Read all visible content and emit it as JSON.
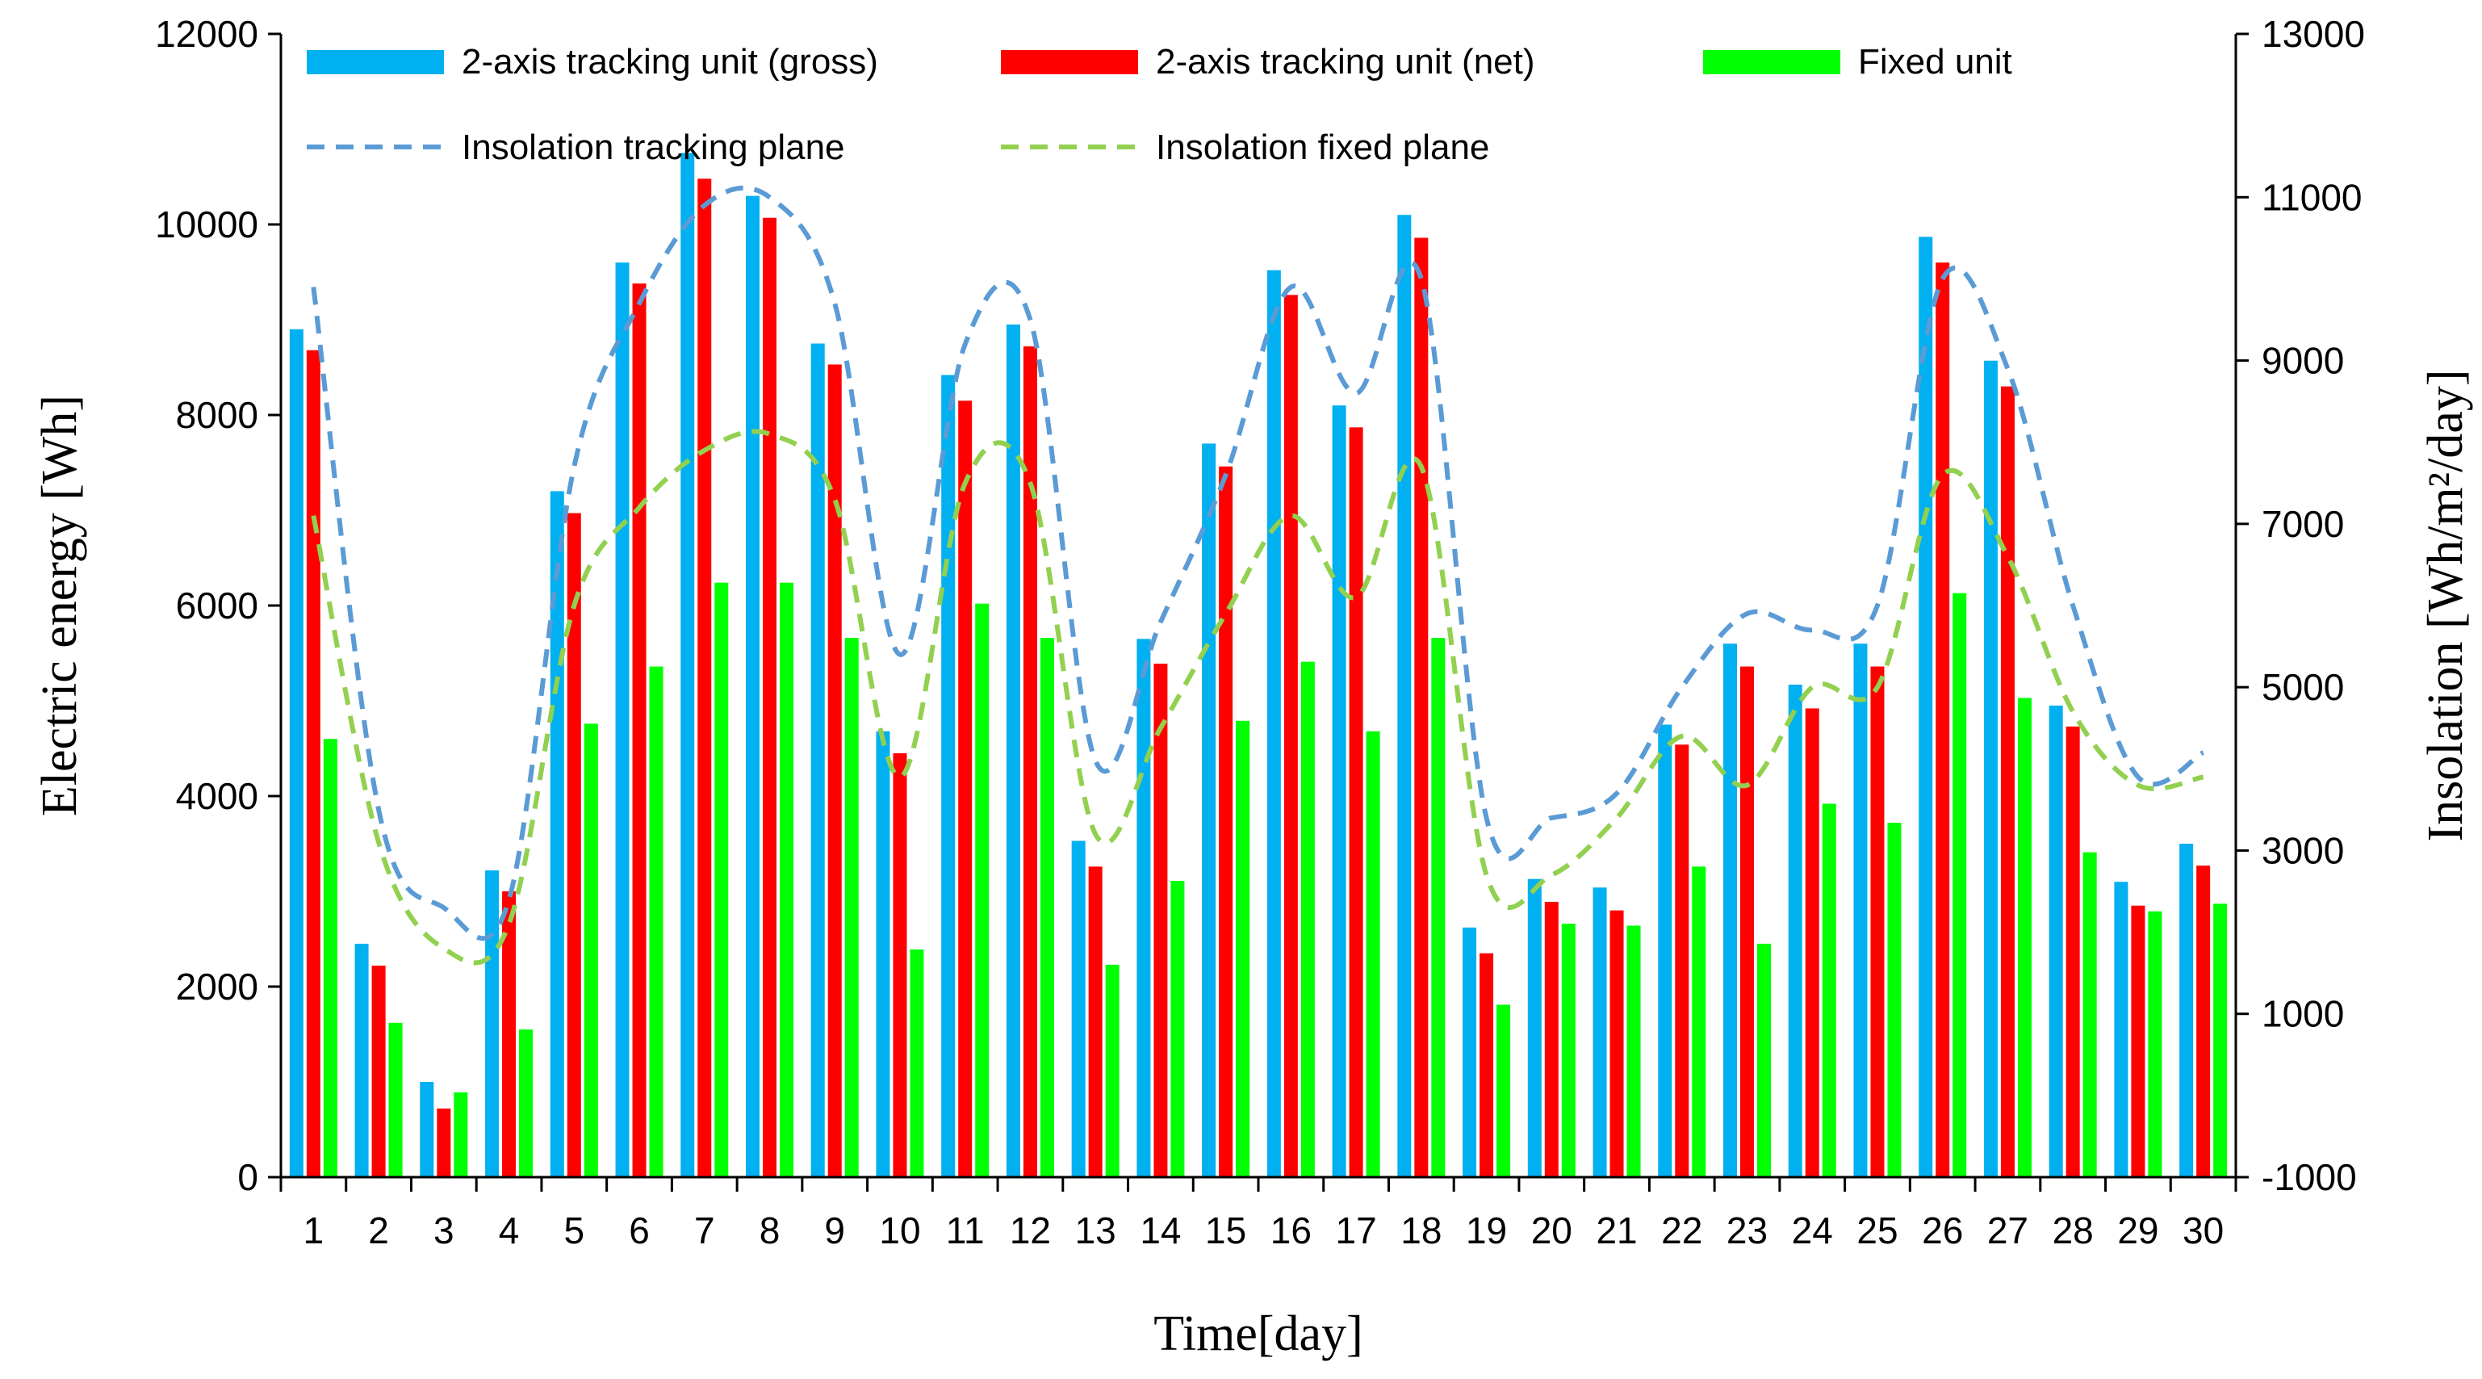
{
  "chart_data": {
    "type": "bar",
    "xlabel": "Time[day]",
    "ylabel": "Electric energy [Wh]",
    "y2label": "Insolation [Wh/m²/day]",
    "ylim": [
      0,
      12000
    ],
    "y2lim": [
      -1000,
      13000
    ],
    "yticks": [
      "0",
      "2000",
      "4000",
      "6000",
      "8000",
      "10000",
      "12000"
    ],
    "y2ticks": [
      "-1000",
      "1000",
      "3000",
      "5000",
      "7000",
      "9000",
      "11000",
      "13000"
    ],
    "categories": [
      "1",
      "2",
      "3",
      "4",
      "5",
      "6",
      "7",
      "8",
      "9",
      "10",
      "11",
      "12",
      "13",
      "14",
      "15",
      "16",
      "17",
      "18",
      "19",
      "20",
      "21",
      "22",
      "23",
      "24",
      "25",
      "26",
      "27",
      "28",
      "29",
      "30"
    ],
    "legend_position": "top",
    "series": [
      {
        "name": "2-axis tracking unit (gross)",
        "kind": "bar",
        "axis": "left",
        "color": "#00B0F0",
        "values": [
          8900,
          2450,
          1000,
          3220,
          7200,
          9600,
          10750,
          10300,
          8750,
          4680,
          8420,
          8950,
          3530,
          5650,
          7700,
          9520,
          8100,
          10100,
          2620,
          3130,
          3040,
          4750,
          5600,
          5170,
          5600,
          9870,
          8570,
          4950,
          3100,
          3500
        ]
      },
      {
        "name": "2-axis tracking unit (net)",
        "kind": "bar",
        "axis": "left",
        "color": "#FF0000",
        "values": [
          8680,
          2220,
          720,
          3000,
          6970,
          9380,
          10480,
          10070,
          8530,
          4450,
          8150,
          8720,
          3260,
          5390,
          7460,
          9260,
          7870,
          9860,
          2350,
          2890,
          2800,
          4540,
          5360,
          4920,
          5360,
          9600,
          8300,
          4730,
          2850,
          3270
        ]
      },
      {
        "name": "Fixed unit",
        "kind": "bar",
        "axis": "left",
        "color": "#00FF00",
        "values": [
          4600,
          1620,
          890,
          1550,
          4760,
          5360,
          6240,
          6240,
          5660,
          2390,
          6020,
          5660,
          2230,
          3110,
          4790,
          5410,
          4680,
          5660,
          1810,
          2660,
          2640,
          3260,
          2450,
          3920,
          3720,
          6130,
          5030,
          3410,
          2790,
          2870
        ]
      },
      {
        "name": "Insolation tracking plane",
        "kind": "line",
        "axis": "right",
        "style": "dashed",
        "color": "#5B9BD5",
        "values": [
          9900,
          3500,
          2300,
          2400,
          7700,
          9700,
          10900,
          11000,
          9700,
          5400,
          9200,
          9500,
          4100,
          5800,
          7600,
          9900,
          8600,
          10000,
          3400,
          3400,
          3700,
          5000,
          5900,
          5700,
          6000,
          10000,
          8900,
          6000,
          3900,
          4200
        ]
      },
      {
        "name": "Insolation fixed plane",
        "kind": "line",
        "axis": "right",
        "style": "dashed",
        "color": "#92D050",
        "values": [
          7100,
          3100,
          1800,
          2100,
          6000,
          7200,
          7900,
          8100,
          7300,
          3900,
          7500,
          7500,
          3200,
          4500,
          5900,
          7100,
          6100,
          7700,
          2700,
          2700,
          3400,
          4400,
          3800,
          5000,
          5000,
          7600,
          6600,
          4700,
          3800,
          3900
        ]
      }
    ]
  }
}
